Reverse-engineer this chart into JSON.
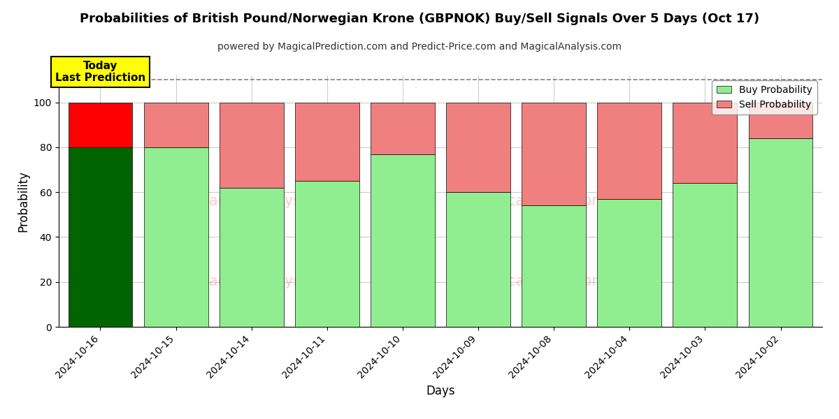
{
  "title": "Probabilities of British Pound/Norwegian Krone (GBPNOK) Buy/Sell Signals Over 5 Days (Oct 17)",
  "subtitle": "powered by MagicalPrediction.com and Predict-Price.com and MagicalAnalysis.com",
  "xlabel": "Days",
  "ylabel": "Probability",
  "dates": [
    "2024-10-16",
    "2024-10-15",
    "2024-10-14",
    "2024-10-11",
    "2024-10-10",
    "2024-10-09",
    "2024-10-08",
    "2024-10-04",
    "2024-10-03",
    "2024-10-02"
  ],
  "buy_values": [
    80,
    80,
    62,
    65,
    77,
    60,
    54,
    57,
    64,
    84
  ],
  "sell_values": [
    20,
    20,
    38,
    35,
    23,
    40,
    46,
    43,
    36,
    16
  ],
  "today_index": 0,
  "buy_color_today": "#006400",
  "sell_color_today": "#ff0000",
  "buy_color_normal": "#90ee90",
  "sell_color_normal": "#f08080",
  "today_label_bg": "#ffff00",
  "today_label_text": "Today\nLast Prediction",
  "legend_buy": "Buy Probability",
  "legend_sell": "Sell Probability",
  "ylim": [
    0,
    112
  ],
  "yticks": [
    0,
    20,
    40,
    60,
    80,
    100
  ],
  "dashed_line_y": 110,
  "background_color": "#ffffff",
  "grid_color": "#cccccc",
  "bar_width": 0.85
}
